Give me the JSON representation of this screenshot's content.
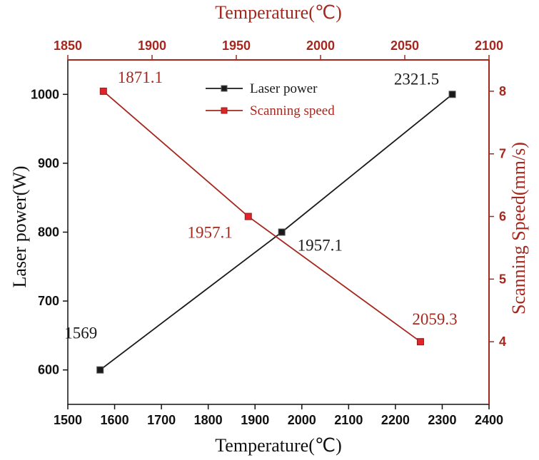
{
  "chart_data": {
    "type": "line",
    "colors": {
      "laser": "#1a1a1a",
      "speed": "#a4281e",
      "axis_left": "#111111",
      "axis_right": "#a4281e"
    },
    "bottom_axis": {
      "label": "Temperature(℃)",
      "range": [
        1500,
        2400
      ],
      "ticks": [
        "1500",
        "1600",
        "1700",
        "1800",
        "1900",
        "2000",
        "2100",
        "2200",
        "2300",
        "2400"
      ]
    },
    "top_axis": {
      "label": "Temperature(℃)",
      "range": [
        1850,
        2100
      ],
      "ticks": [
        "1850",
        "1900",
        "1950",
        "2000",
        "2050",
        "2100"
      ]
    },
    "left_axis": {
      "label": "Laser power(W)",
      "range": [
        550,
        1050
      ],
      "ticks": [
        "600",
        "700",
        "800",
        "900",
        "1000"
      ]
    },
    "right_axis": {
      "label": "Scanning Speed(mm/s)",
      "range": [
        3,
        8.5
      ],
      "ticks": [
        "4",
        "5",
        "6",
        "7",
        "8"
      ]
    },
    "legend": [
      "Laser power",
      "Scanning speed"
    ],
    "series": [
      {
        "name": "Laser power",
        "x_axis": "bottom",
        "y_axis": "left",
        "points": [
          {
            "x": 1569,
            "y": 600
          },
          {
            "x": 1957.1,
            "y": 800
          },
          {
            "x": 2321.5,
            "y": 1000
          }
        ],
        "labels": [
          "1569",
          "1957.1",
          "2321.5"
        ]
      },
      {
        "name": "Scanning speed",
        "x_axis": "top",
        "y_axis": "right",
        "points": [
          {
            "x": 1871.1,
            "y": 8
          },
          {
            "x": 1957.1,
            "y": 6
          },
          {
            "x": 2059.3,
            "y": 4
          }
        ],
        "labels": [
          "1871.1",
          "1957.1",
          "2059.3"
        ]
      }
    ]
  }
}
